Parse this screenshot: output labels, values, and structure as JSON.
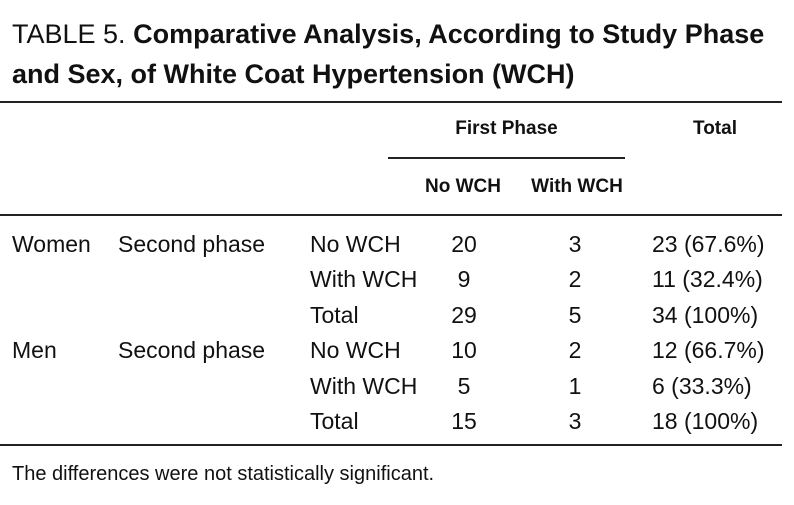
{
  "table": {
    "title_label": "TABLE 5.",
    "title": "Comparative Analysis, According to Study Phase and Sex, of White Coat Hypertension (WCH)",
    "header": {
      "first_phase": "First Phase",
      "total": "Total",
      "no_wch": "No WCH",
      "with_wch": "With WCH"
    },
    "groups": [
      {
        "sex": "Women",
        "phase": "Second phase",
        "rows": [
          [
            "No WCH",
            20,
            3,
            "23 (67.6%)"
          ],
          [
            "With WCH",
            9,
            2,
            "11 (32.4%)"
          ],
          [
            "Total",
            29,
            5,
            "34 (100%)"
          ]
        ]
      },
      {
        "sex": "Men",
        "phase": "Second phase",
        "rows": [
          [
            "No WCH",
            10,
            2,
            "12 (66.7%)"
          ],
          [
            "With WCH",
            5,
            1,
            "6 (33.3%)"
          ],
          [
            "Total",
            15,
            3,
            "18 (100%)"
          ]
        ]
      }
    ],
    "footnote": "The differences were not statistically significant."
  }
}
